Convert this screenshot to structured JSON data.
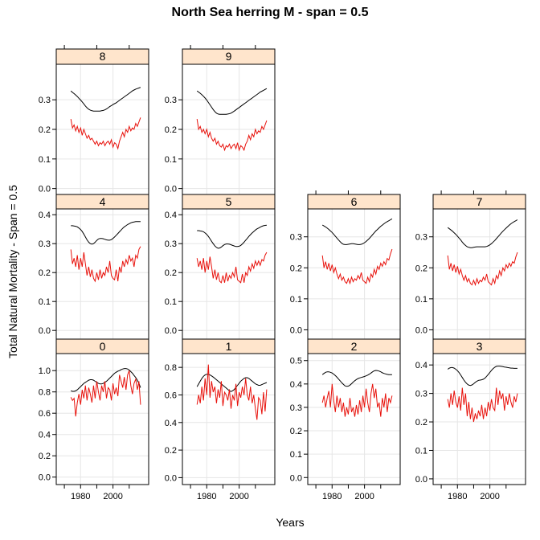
{
  "chart_data": {
    "type": "line",
    "title": "North Sea herring M - span = 0.5",
    "xlabel": "Years",
    "ylabel": "Total Natural Mortality - Span = 0.5",
    "xlim": [
      1965,
      2022
    ],
    "xticks": [
      1980,
      2000
    ],
    "grid": true,
    "strip_fill": "#ffe5cc",
    "smooth_color": "#000000",
    "raw_color": "#e8120c",
    "years": [
      1974,
      1975,
      1976,
      1977,
      1978,
      1979,
      1980,
      1981,
      1982,
      1983,
      1984,
      1985,
      1986,
      1987,
      1988,
      1989,
      1990,
      1991,
      1992,
      1993,
      1994,
      1995,
      1996,
      1997,
      1998,
      1999,
      2000,
      2001,
      2002,
      2003,
      2004,
      2005,
      2006,
      2007,
      2008,
      2009,
      2010,
      2011,
      2012,
      2013,
      2014,
      2015,
      2016,
      2017
    ],
    "panels": [
      {
        "label": "8",
        "ylim": [
          -0.02,
          0.42
        ],
        "yticks": [
          0.0,
          0.1,
          0.2,
          0.3
        ],
        "smooth": [
          0.33,
          0.325,
          0.321,
          0.316,
          0.311,
          0.305,
          0.299,
          0.293,
          0.286,
          0.279,
          0.273,
          0.268,
          0.265,
          0.263,
          0.262,
          0.262,
          0.262,
          0.262,
          0.262,
          0.263,
          0.264,
          0.266,
          0.269,
          0.273,
          0.277,
          0.28,
          0.284,
          0.287,
          0.29,
          0.294,
          0.298,
          0.302,
          0.306,
          0.31,
          0.314,
          0.318,
          0.322,
          0.326,
          0.33,
          0.333,
          0.336,
          0.338,
          0.34,
          0.342
        ],
        "raw": [
          0.235,
          0.205,
          0.215,
          0.195,
          0.21,
          0.19,
          0.205,
          0.18,
          0.2,
          0.185,
          0.17,
          0.18,
          0.165,
          0.17,
          0.16,
          0.15,
          0.16,
          0.145,
          0.155,
          0.15,
          0.16,
          0.145,
          0.155,
          0.16,
          0.15,
          0.165,
          0.14,
          0.155,
          0.15,
          0.135,
          0.16,
          0.175,
          0.19,
          0.175,
          0.2,
          0.19,
          0.21,
          0.195,
          0.205,
          0.2,
          0.22,
          0.21,
          0.225,
          0.24
        ]
      },
      {
        "label": "9",
        "ylim": [
          -0.02,
          0.42
        ],
        "yticks": [
          0.0,
          0.1,
          0.2,
          0.3
        ],
        "smooth": [
          0.33,
          0.326,
          0.322,
          0.317,
          0.312,
          0.306,
          0.299,
          0.291,
          0.283,
          0.275,
          0.267,
          0.26,
          0.255,
          0.252,
          0.251,
          0.251,
          0.251,
          0.251,
          0.251,
          0.252,
          0.253,
          0.255,
          0.258,
          0.262,
          0.266,
          0.27,
          0.274,
          0.278,
          0.282,
          0.286,
          0.29,
          0.294,
          0.298,
          0.302,
          0.306,
          0.31,
          0.314,
          0.318,
          0.322,
          0.326,
          0.329,
          0.332,
          0.335,
          0.338
        ],
        "raw": [
          0.235,
          0.2,
          0.21,
          0.19,
          0.2,
          0.185,
          0.2,
          0.175,
          0.19,
          0.17,
          0.16,
          0.17,
          0.15,
          0.16,
          0.145,
          0.14,
          0.15,
          0.13,
          0.145,
          0.14,
          0.15,
          0.135,
          0.145,
          0.15,
          0.135,
          0.155,
          0.13,
          0.145,
          0.14,
          0.13,
          0.15,
          0.16,
          0.18,
          0.165,
          0.185,
          0.175,
          0.2,
          0.185,
          0.195,
          0.19,
          0.21,
          0.2,
          0.215,
          0.23
        ]
      },
      {
        "label": "4",
        "ylim": [
          -0.03,
          0.42
        ],
        "yticks": [
          0.0,
          0.1,
          0.2,
          0.3,
          0.4
        ],
        "smooth": [
          0.362,
          0.362,
          0.361,
          0.36,
          0.358,
          0.354,
          0.349,
          0.342,
          0.333,
          0.323,
          0.313,
          0.305,
          0.3,
          0.298,
          0.3,
          0.305,
          0.311,
          0.316,
          0.318,
          0.318,
          0.317,
          0.315,
          0.313,
          0.312,
          0.312,
          0.314,
          0.318,
          0.323,
          0.329,
          0.335,
          0.341,
          0.347,
          0.353,
          0.358,
          0.362,
          0.366,
          0.369,
          0.372,
          0.374,
          0.375,
          0.376,
          0.376,
          0.376,
          0.376
        ],
        "raw": [
          0.28,
          0.23,
          0.25,
          0.22,
          0.26,
          0.21,
          0.25,
          0.22,
          0.27,
          0.23,
          0.19,
          0.22,
          0.185,
          0.21,
          0.18,
          0.17,
          0.2,
          0.175,
          0.21,
          0.18,
          0.2,
          0.19,
          0.22,
          0.2,
          0.24,
          0.19,
          0.18,
          0.175,
          0.21,
          0.17,
          0.22,
          0.2,
          0.24,
          0.22,
          0.245,
          0.23,
          0.26,
          0.24,
          0.25,
          0.22,
          0.26,
          0.25,
          0.28,
          0.29
        ]
      },
      {
        "label": "5",
        "ylim": [
          -0.03,
          0.42
        ],
        "yticks": [
          0.0,
          0.1,
          0.2,
          0.3,
          0.4
        ],
        "smooth": [
          0.345,
          0.345,
          0.344,
          0.343,
          0.341,
          0.337,
          0.332,
          0.325,
          0.317,
          0.308,
          0.3,
          0.292,
          0.287,
          0.284,
          0.285,
          0.288,
          0.293,
          0.297,
          0.299,
          0.299,
          0.298,
          0.296,
          0.294,
          0.292,
          0.29,
          0.29,
          0.291,
          0.294,
          0.299,
          0.305,
          0.312,
          0.318,
          0.325,
          0.331,
          0.337,
          0.342,
          0.347,
          0.351,
          0.354,
          0.357,
          0.36,
          0.362,
          0.363,
          0.364
        ],
        "raw": [
          0.25,
          0.22,
          0.24,
          0.21,
          0.25,
          0.2,
          0.24,
          0.21,
          0.255,
          0.22,
          0.18,
          0.21,
          0.175,
          0.2,
          0.17,
          0.165,
          0.19,
          0.165,
          0.2,
          0.17,
          0.19,
          0.18,
          0.2,
          0.185,
          0.22,
          0.175,
          0.17,
          0.165,
          0.195,
          0.165,
          0.2,
          0.19,
          0.22,
          0.205,
          0.23,
          0.215,
          0.24,
          0.225,
          0.24,
          0.225,
          0.245,
          0.24,
          0.26,
          0.27
        ]
      },
      {
        "label": "6",
        "ylim": [
          -0.03,
          0.39
        ],
        "yticks": [
          0.0,
          0.1,
          0.2,
          0.3
        ],
        "smooth": [
          0.338,
          0.335,
          0.332,
          0.328,
          0.324,
          0.319,
          0.314,
          0.308,
          0.302,
          0.296,
          0.29,
          0.284,
          0.279,
          0.276,
          0.275,
          0.275,
          0.276,
          0.277,
          0.278,
          0.278,
          0.277,
          0.276,
          0.275,
          0.275,
          0.276,
          0.278,
          0.281,
          0.285,
          0.29,
          0.295,
          0.301,
          0.307,
          0.313,
          0.319,
          0.324,
          0.329,
          0.334,
          0.338,
          0.342,
          0.346,
          0.349,
          0.352,
          0.355,
          0.358
        ],
        "raw": [
          0.24,
          0.2,
          0.22,
          0.195,
          0.215,
          0.19,
          0.21,
          0.185,
          0.2,
          0.18,
          0.165,
          0.18,
          0.16,
          0.17,
          0.155,
          0.15,
          0.165,
          0.15,
          0.17,
          0.155,
          0.165,
          0.16,
          0.175,
          0.165,
          0.185,
          0.16,
          0.155,
          0.15,
          0.17,
          0.155,
          0.18,
          0.17,
          0.195,
          0.18,
          0.205,
          0.195,
          0.215,
          0.205,
          0.22,
          0.21,
          0.23,
          0.225,
          0.245,
          0.26
        ]
      },
      {
        "label": "7",
        "ylim": [
          -0.03,
          0.39
        ],
        "yticks": [
          0.0,
          0.1,
          0.2,
          0.3
        ],
        "smooth": [
          0.33,
          0.326,
          0.322,
          0.318,
          0.313,
          0.308,
          0.302,
          0.296,
          0.29,
          0.283,
          0.277,
          0.272,
          0.268,
          0.266,
          0.265,
          0.265,
          0.266,
          0.267,
          0.268,
          0.268,
          0.268,
          0.268,
          0.268,
          0.268,
          0.269,
          0.271,
          0.274,
          0.278,
          0.283,
          0.288,
          0.294,
          0.3,
          0.306,
          0.312,
          0.318,
          0.323,
          0.328,
          0.333,
          0.338,
          0.342,
          0.346,
          0.349,
          0.352,
          0.355
        ],
        "raw": [
          0.24,
          0.195,
          0.215,
          0.19,
          0.21,
          0.185,
          0.205,
          0.18,
          0.195,
          0.175,
          0.16,
          0.175,
          0.155,
          0.165,
          0.15,
          0.145,
          0.16,
          0.145,
          0.165,
          0.15,
          0.16,
          0.155,
          0.17,
          0.16,
          0.18,
          0.155,
          0.15,
          0.145,
          0.165,
          0.15,
          0.175,
          0.165,
          0.19,
          0.175,
          0.2,
          0.19,
          0.21,
          0.2,
          0.215,
          0.205,
          0.22,
          0.215,
          0.235,
          0.25
        ]
      },
      {
        "label": "0",
        "ylim": [
          -0.07,
          1.16
        ],
        "yticks": [
          0.0,
          0.2,
          0.4,
          0.6,
          0.8,
          1.0
        ],
        "smooth": [
          0.81,
          0.805,
          0.805,
          0.81,
          0.82,
          0.835,
          0.85,
          0.865,
          0.88,
          0.89,
          0.9,
          0.91,
          0.915,
          0.915,
          0.91,
          0.9,
          0.89,
          0.88,
          0.875,
          0.875,
          0.88,
          0.89,
          0.9,
          0.915,
          0.93,
          0.945,
          0.96,
          0.975,
          0.985,
          0.995,
          1.0,
          1.01,
          1.015,
          1.02,
          1.02,
          1.015,
          1.005,
          0.99,
          0.975,
          0.955,
          0.935,
          0.91,
          0.88,
          0.84
        ],
        "raw": [
          0.75,
          0.72,
          0.74,
          0.57,
          0.7,
          0.78,
          0.68,
          0.82,
          0.74,
          0.86,
          0.72,
          0.84,
          0.78,
          0.7,
          0.86,
          0.74,
          0.9,
          0.8,
          0.72,
          0.86,
          0.8,
          0.9,
          0.74,
          0.84,
          0.82,
          0.72,
          0.88,
          0.78,
          0.84,
          0.76,
          0.96,
          0.9,
          0.84,
          0.94,
          0.82,
          0.96,
          1.0,
          0.86,
          0.78,
          0.88,
          0.92,
          0.82,
          0.9,
          0.68
        ]
      },
      {
        "label": "1",
        "ylim": [
          -0.05,
          0.9
        ],
        "yticks": [
          0.0,
          0.2,
          0.4,
          0.6,
          0.8
        ],
        "smooth": [
          0.66,
          0.68,
          0.7,
          0.72,
          0.735,
          0.745,
          0.75,
          0.75,
          0.745,
          0.738,
          0.73,
          0.72,
          0.71,
          0.7,
          0.69,
          0.68,
          0.67,
          0.66,
          0.65,
          0.64,
          0.63,
          0.625,
          0.63,
          0.64,
          0.655,
          0.67,
          0.685,
          0.7,
          0.71,
          0.72,
          0.725,
          0.725,
          0.72,
          0.71,
          0.7,
          0.69,
          0.68,
          0.675,
          0.67,
          0.67,
          0.675,
          0.68,
          0.685,
          0.69
        ],
        "raw": [
          0.53,
          0.6,
          0.54,
          0.66,
          0.56,
          0.72,
          0.6,
          0.82,
          0.58,
          0.7,
          0.62,
          0.66,
          0.54,
          0.64,
          0.58,
          0.7,
          0.52,
          0.62,
          0.6,
          0.56,
          0.64,
          0.5,
          0.6,
          0.56,
          0.68,
          0.52,
          0.62,
          0.58,
          0.66,
          0.6,
          0.72,
          0.6,
          0.56,
          0.66,
          0.54,
          0.6,
          0.5,
          0.42,
          0.58,
          0.56,
          0.46,
          0.62,
          0.48,
          0.64
        ]
      },
      {
        "label": "2",
        "ylim": [
          -0.03,
          0.53
        ],
        "yticks": [
          0.0,
          0.1,
          0.2,
          0.3,
          0.4,
          0.5
        ],
        "smooth": [
          0.44,
          0.445,
          0.45,
          0.452,
          0.452,
          0.45,
          0.447,
          0.442,
          0.436,
          0.429,
          0.421,
          0.413,
          0.405,
          0.398,
          0.392,
          0.39,
          0.391,
          0.395,
          0.401,
          0.408,
          0.414,
          0.419,
          0.423,
          0.426,
          0.428,
          0.43,
          0.432,
          0.435,
          0.438,
          0.442,
          0.447,
          0.452,
          0.456,
          0.458,
          0.457,
          0.455,
          0.452,
          0.448,
          0.445,
          0.443,
          0.441,
          0.44,
          0.44,
          0.44
        ],
        "raw": [
          0.32,
          0.35,
          0.3,
          0.34,
          0.37,
          0.3,
          0.4,
          0.33,
          0.28,
          0.35,
          0.3,
          0.34,
          0.28,
          0.32,
          0.26,
          0.3,
          0.27,
          0.34,
          0.28,
          0.3,
          0.26,
          0.31,
          0.27,
          0.33,
          0.28,
          0.35,
          0.3,
          0.38,
          0.32,
          0.28,
          0.36,
          0.4,
          0.34,
          0.38,
          0.3,
          0.32,
          0.26,
          0.34,
          0.3,
          0.36,
          0.28,
          0.34,
          0.32,
          0.35
        ]
      },
      {
        "label": "3",
        "ylim": [
          -0.02,
          0.44
        ],
        "yticks": [
          0.0,
          0.1,
          0.2,
          0.3,
          0.4
        ],
        "smooth": [
          0.385,
          0.389,
          0.391,
          0.391,
          0.389,
          0.385,
          0.38,
          0.373,
          0.365,
          0.356,
          0.347,
          0.339,
          0.333,
          0.329,
          0.328,
          0.33,
          0.334,
          0.339,
          0.343,
          0.346,
          0.347,
          0.348,
          0.35,
          0.354,
          0.36,
          0.367,
          0.374,
          0.381,
          0.387,
          0.392,
          0.395,
          0.396,
          0.396,
          0.395,
          0.394,
          0.393,
          0.392,
          0.391,
          0.39,
          0.389,
          0.389,
          0.388,
          0.388,
          0.388
        ],
        "raw": [
          0.28,
          0.25,
          0.3,
          0.26,
          0.31,
          0.27,
          0.25,
          0.29,
          0.24,
          0.32,
          0.26,
          0.3,
          0.22,
          0.27,
          0.21,
          0.25,
          0.2,
          0.23,
          0.21,
          0.24,
          0.22,
          0.26,
          0.21,
          0.25,
          0.22,
          0.27,
          0.24,
          0.28,
          0.25,
          0.24,
          0.32,
          0.26,
          0.31,
          0.28,
          0.3,
          0.24,
          0.29,
          0.26,
          0.3,
          0.27,
          0.25,
          0.29,
          0.27,
          0.3
        ]
      }
    ]
  }
}
